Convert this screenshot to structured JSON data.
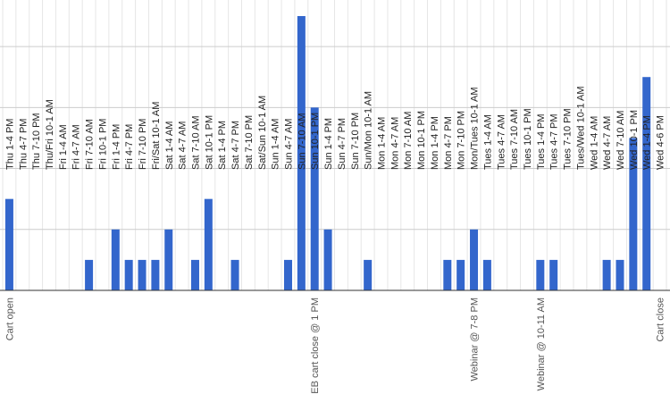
{
  "chart_data": {
    "type": "bar",
    "title": "",
    "xlabel": "",
    "ylabel": "",
    "ylim": [
      0,
      9
    ],
    "grid": true,
    "legend": "none",
    "categories": [
      "Thu 1-4 PM",
      "Thu 4-7 PM",
      "Thu 7-10 PM",
      "Thu/Fri 10-1 AM",
      "Fri 1-4 AM",
      "Fri 4-7 AM",
      "Fri 7-10 AM",
      "Fri 10-1 PM",
      "Fri 1-4 PM",
      "Fri 4-7 PM",
      "Fri 7-10 PM",
      "Fri/Sat 10-1 AM",
      "Sat 1-4 AM",
      "Sat 4-7 AM",
      "Sat 7-10 AM",
      "Sat 10-1 PM",
      "Sat 1-4 PM",
      "Sat 4-7 PM",
      "Sat 7-10 PM",
      "Sat/Sun 10-1 AM",
      "Sun 1-4 AM",
      "Sun 4-7 AM",
      "Sun 7-10 AM",
      "Sun 10-1 PM",
      "Sun 1-4 PM",
      "Sun 4-7 PM",
      "Sun 7-10 PM",
      "Sun/Mon 10-1 AM",
      "Mon 1-4 AM",
      "Mon 4-7 AM",
      "Mon 7-10 AM",
      "Mon 10-1 PM",
      "Mon 1-4 PM",
      "Mon 4-7 PM",
      "Mon 7-10 PM",
      "Mon/Tues 10-1 AM",
      "Tues 1-4 AM",
      "Tues 4-7 AM",
      "Tues 7-10 AM",
      "Tues 10-1 PM",
      "Tues 1-4 PM",
      "Tues 4-7 PM",
      "Tues 7-10 PM",
      "Tues/Wed 10-1 AM",
      "Wed 1-4 AM",
      "Wed 4-7 AM",
      "Wed 7-10 AM",
      "Wed 10-1 PM",
      "Wed 1-4 PM",
      "Wed 4-6 PM"
    ],
    "values": [
      3,
      0,
      0,
      0,
      0,
      0,
      1,
      0,
      2,
      1,
      1,
      1,
      2,
      0,
      1,
      3,
      0,
      1,
      0,
      0,
      0,
      1,
      9,
      6,
      2,
      0,
      0,
      1,
      0,
      0,
      0,
      0,
      0,
      1,
      1,
      2,
      1,
      0,
      0,
      0,
      1,
      1,
      0,
      0,
      0,
      1,
      1,
      5,
      7,
      0
    ],
    "annotations": [
      {
        "label": "Cart open",
        "index": 0
      },
      {
        "label": "EB cart close @ 1 PM",
        "index": 23
      },
      {
        "label": "Webinar @ 7-8 PM",
        "index": 35
      },
      {
        "label": "Webinar @ 10-11 AM",
        "index": 40
      },
      {
        "label": "Cart close",
        "index": 49
      }
    ],
    "colors": {
      "bar": "#3366cc",
      "grid": "#cccccc",
      "category_grid": "#e6e6e6",
      "baseline": "#333333",
      "category_text": "#222222",
      "annotation_text": "#555555"
    }
  }
}
